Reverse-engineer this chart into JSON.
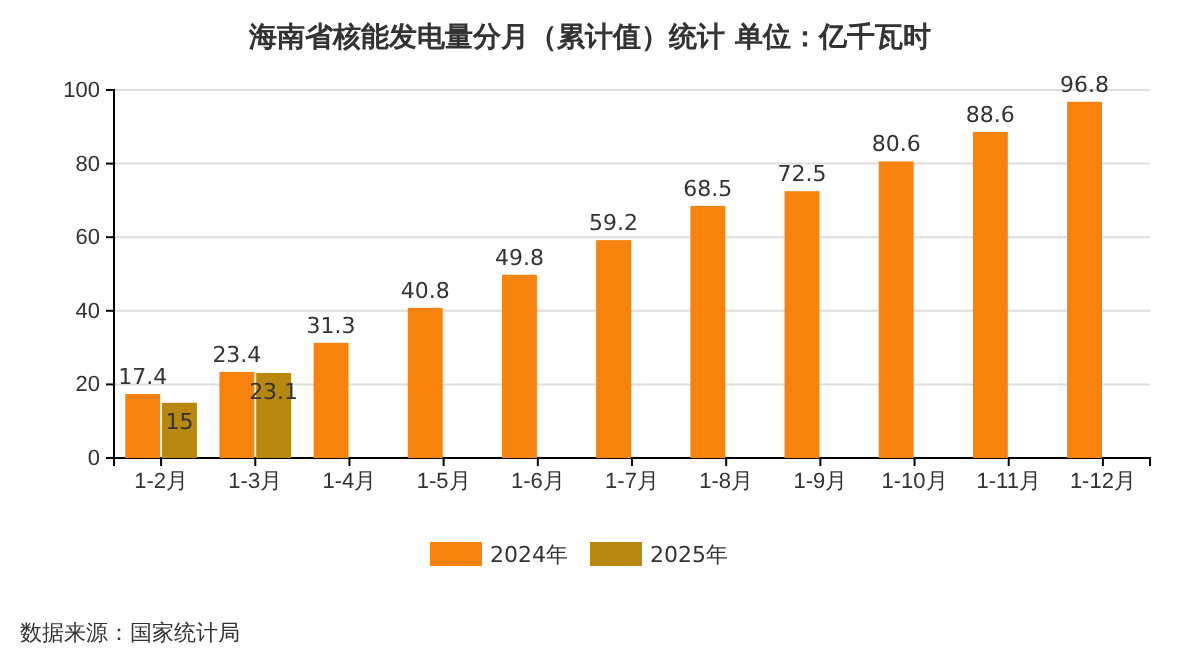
{
  "chart_data": {
    "type": "bar",
    "title": "海南省核能发电量分月（累计值）统计 单位：亿千瓦时",
    "categories": [
      "1-2月",
      "1-3月",
      "1-4月",
      "1-5月",
      "1-6月",
      "1-7月",
      "1-8月",
      "1-9月",
      "1-10月",
      "1-11月",
      "1-12月"
    ],
    "series": [
      {
        "name": "2024年",
        "color": "#f7820e",
        "values": [
          17.4,
          23.4,
          31.3,
          40.8,
          49.8,
          59.2,
          68.5,
          72.5,
          80.6,
          88.6,
          96.8
        ]
      },
      {
        "name": "2025年",
        "color": "#b8870e",
        "values": [
          15,
          23.1,
          null,
          null,
          null,
          null,
          null,
          null,
          null,
          null,
          null
        ]
      }
    ],
    "ylim": [
      0,
      100
    ],
    "yticks": [
      0,
      20,
      40,
      60,
      80,
      100
    ],
    "grid": "y",
    "legend": "bottom",
    "data_labels": true,
    "annotations": [
      "数据来源：国家统计局"
    ]
  }
}
